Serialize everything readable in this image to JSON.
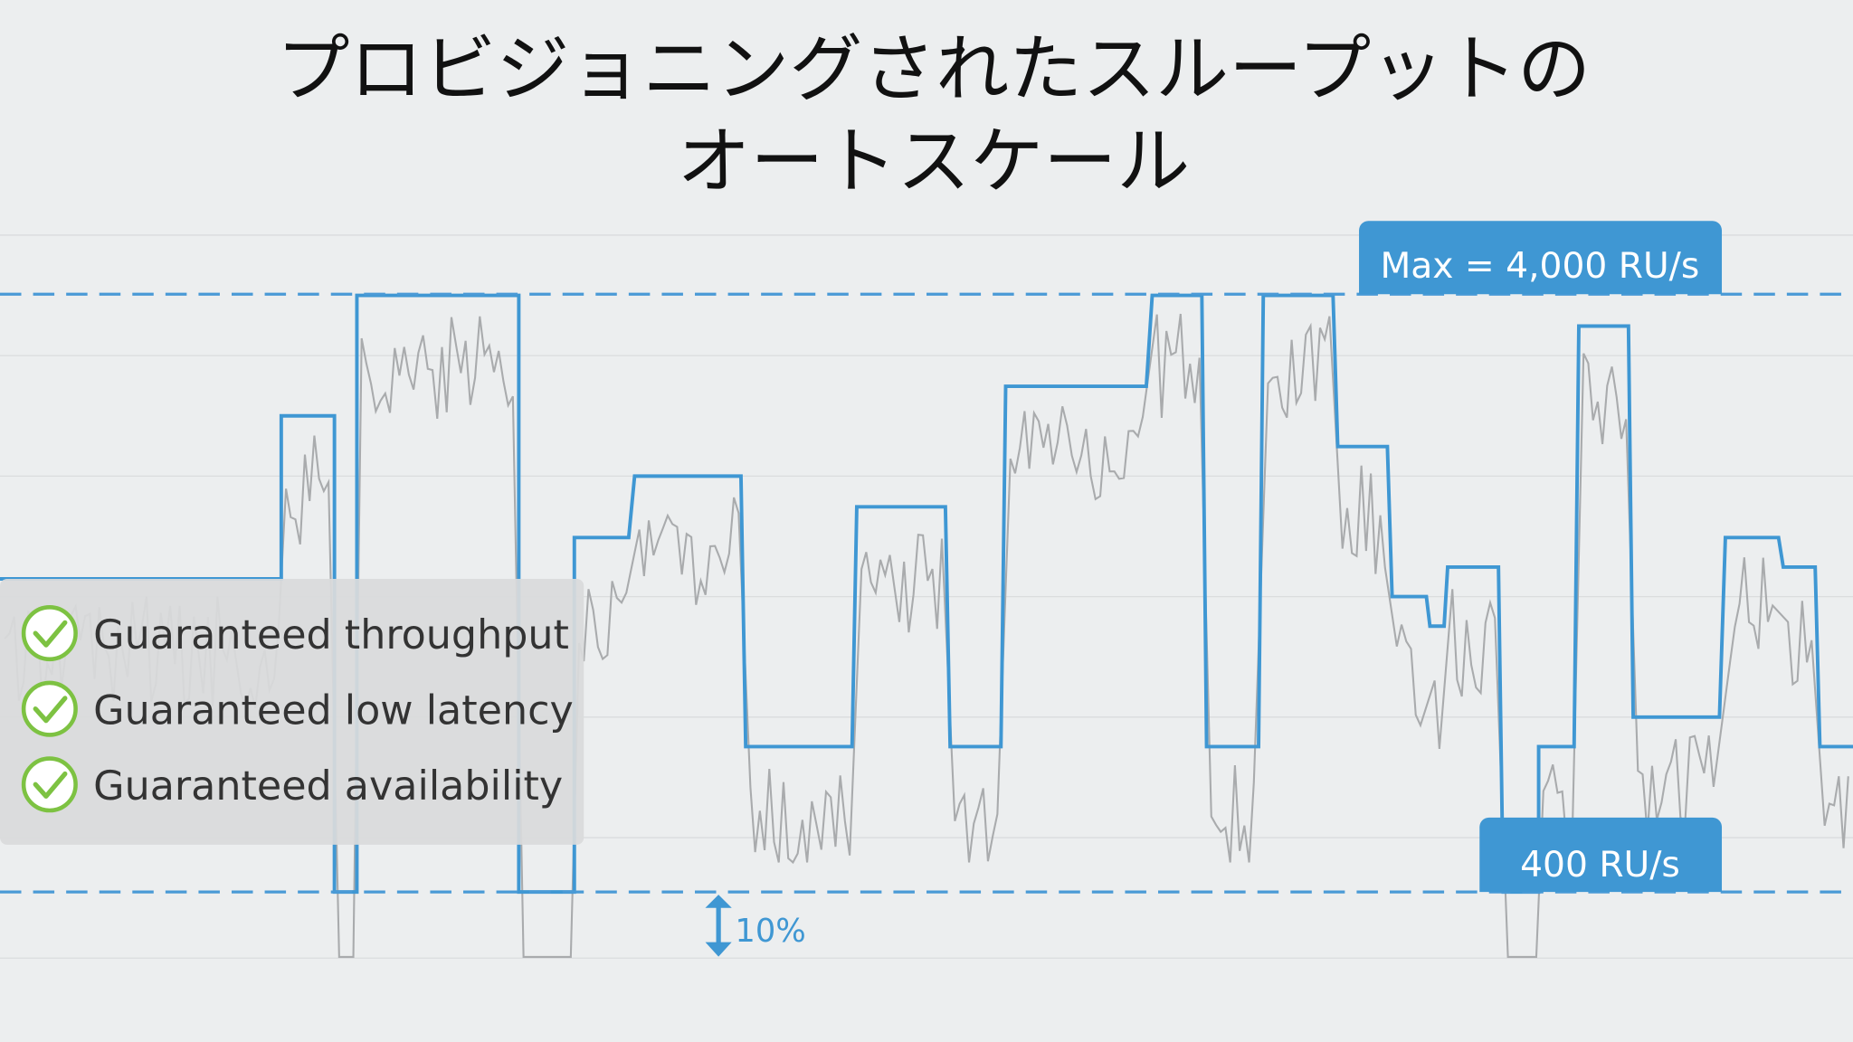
{
  "title": {
    "lines": [
      "プロビジョニングされたスループットの",
      "オートスケール"
    ]
  },
  "labels": {
    "max": "Max = 4,000 RU/s",
    "min": "400 RU/s",
    "headroom": "10%"
  },
  "features": [
    "Guaranteed throughput",
    "Guaranteed low latency",
    "Guaranteed availability"
  ]
}
